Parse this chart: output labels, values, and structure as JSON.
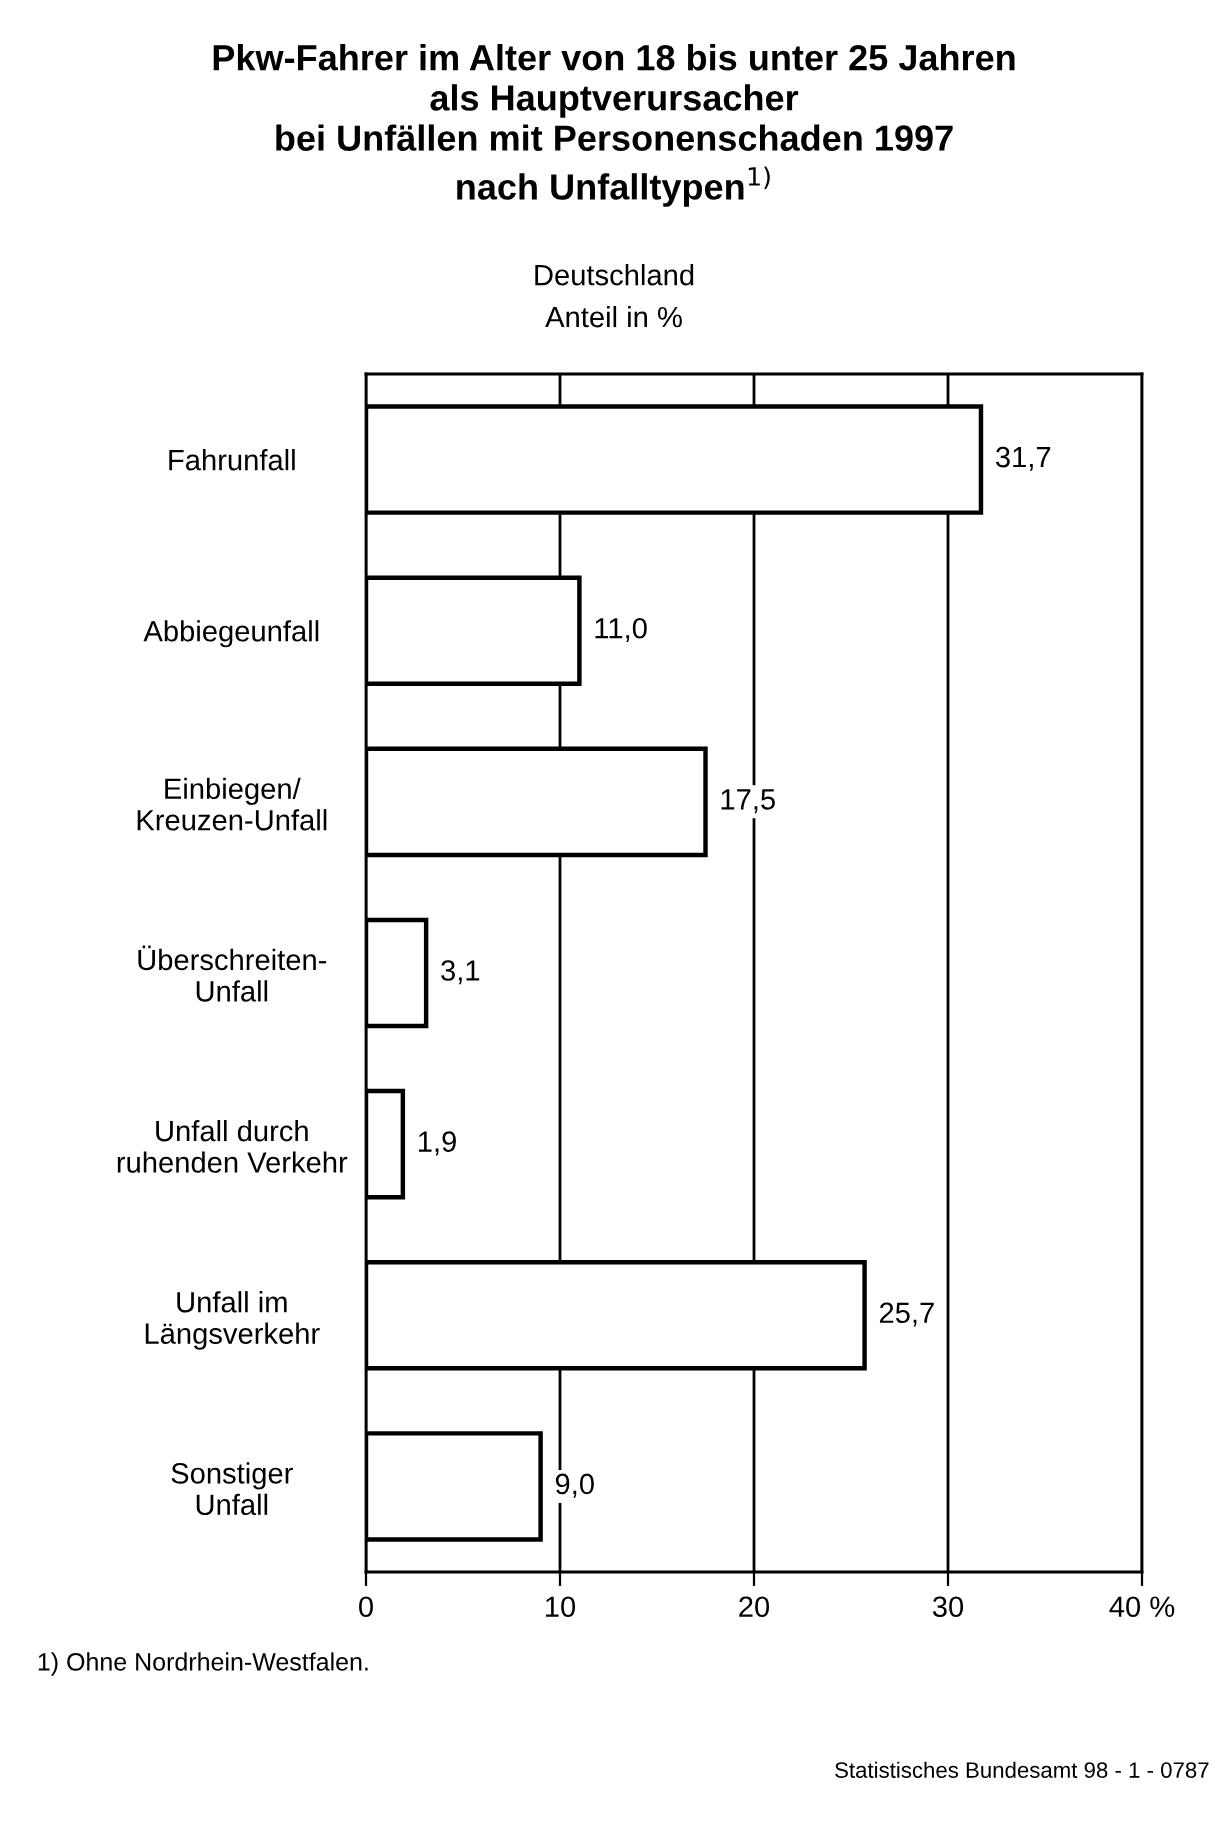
{
  "chart_data": {
    "type": "bar",
    "orientation": "horizontal",
    "title": "Pkw-Fahrer im Alter von 18 bis unter 25 Jahren\nals Hauptverursacher\nbei Unfällen mit Personenschaden 1997\nnach Unfalltypen$^{1)}$",
    "subtitle": "Deutschland\nAnteil in %",
    "categories": [
      "Fahrunfall",
      "Abbiegeunfall",
      "Einbiegen/\nKreuzen-Unfall",
      "Überschreiten-\nUnfall",
      "Unfall durch\nruhenden Verkehr",
      "Unfall im\nLängsverkehr",
      "Sonstiger\nUnfall"
    ],
    "values": [
      31.7,
      11.0,
      17.5,
      3.1,
      1.9,
      25.7,
      9.0
    ],
    "value_labels": [
      "31,7",
      "11,0",
      "17,5",
      "3,1",
      "1,9",
      "25,7",
      "9,0"
    ],
    "color": "#ffffff",
    "xlim": [
      0,
      40
    ],
    "xticks": [
      0,
      10,
      20,
      30,
      {
        "value": 40,
        "label": "40 %"
      }
    ],
    "grid": "x",
    "annotations": [
      "1) Ohne Nordrhein-Westfalen.",
      "Statistisches Bundesamt 98 - 1 - 0787"
    ]
  }
}
